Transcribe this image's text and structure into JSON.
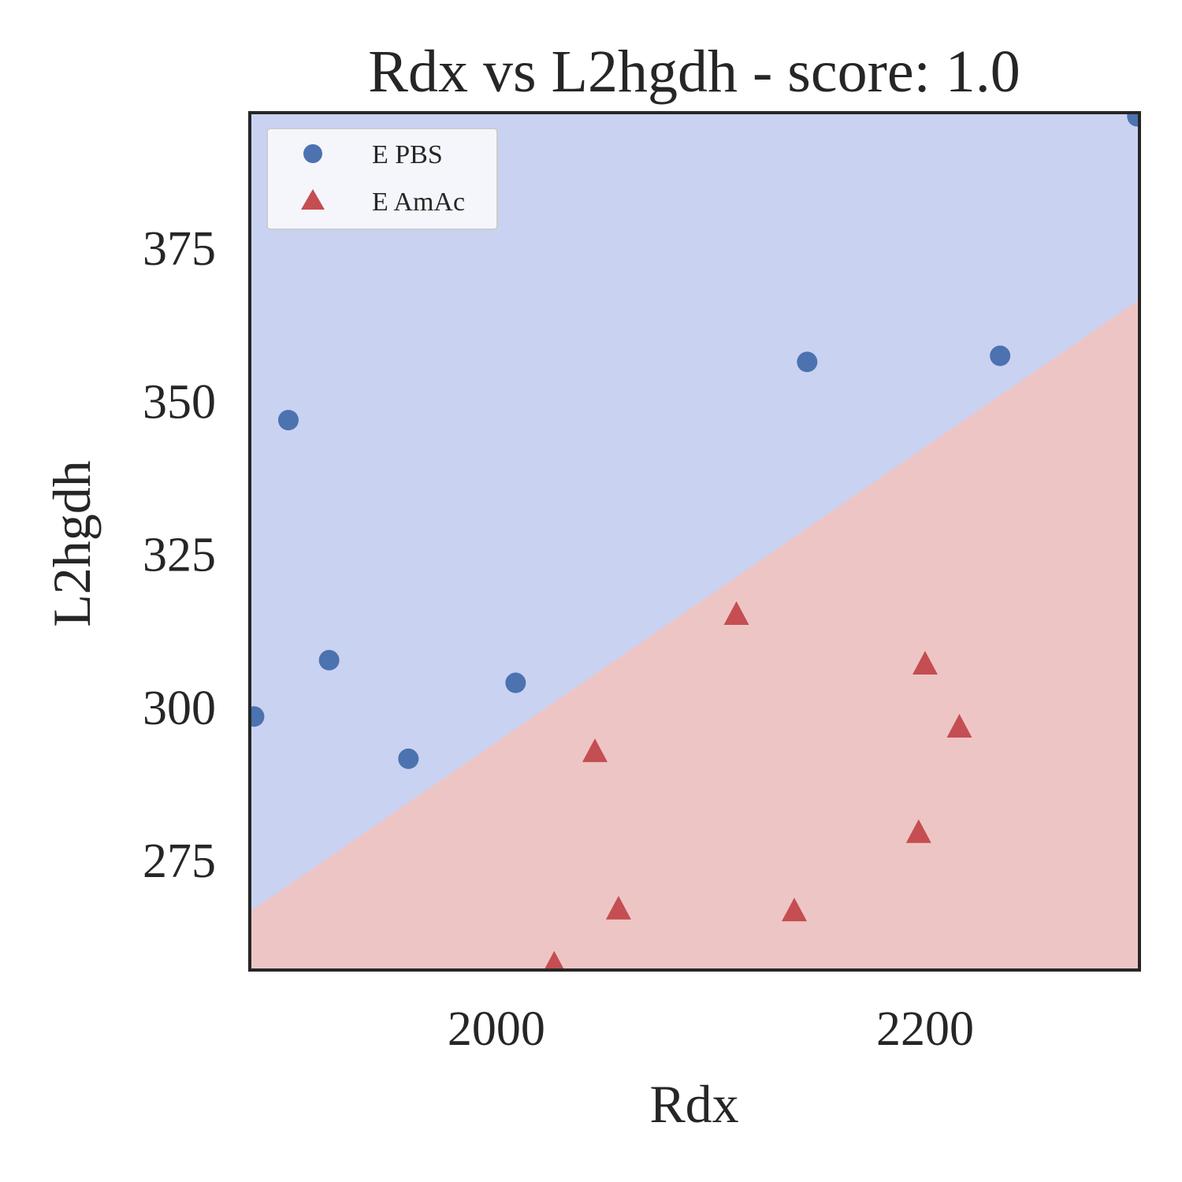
{
  "chart_data": {
    "type": "scatter",
    "title": "Rdx vs L2hgdh - score: 1.0",
    "xlabel": "Rdx",
    "ylabel": "L2hgdh",
    "xlim": [
      1885,
      2300
    ],
    "ylim": [
      257,
      397
    ],
    "x_ticks": [
      2000,
      2200
    ],
    "y_ticks": [
      275,
      300,
      325,
      350,
      375
    ],
    "grid": false,
    "legend_position": "top-left",
    "decision_boundary": {
      "points": [
        [
          1885,
          266.5
        ],
        [
          2300,
          366.5
        ]
      ],
      "above_class": "E PBS",
      "below_class": "E AmAc"
    },
    "series": [
      {
        "name": "E PBS",
        "marker": "circle",
        "color": "#4c72b0",
        "region_color": "#c9d2f1",
        "points": [
          [
            1887,
            298.4
          ],
          [
            1903,
            346.8
          ],
          [
            1922,
            307.6
          ],
          [
            1959,
            291.5
          ],
          [
            2009,
            303.9
          ],
          [
            2145,
            356.3
          ],
          [
            2235,
            357.3
          ],
          [
            2299,
            396.4
          ]
        ]
      },
      {
        "name": "E AmAc",
        "marker": "triangle",
        "color": "#c44e52",
        "region_color": "#eec5c5",
        "points": [
          [
            2027,
            257.8
          ],
          [
            2046,
            292.5
          ],
          [
            2057,
            266.8
          ],
          [
            2112,
            314.9
          ],
          [
            2139,
            266.5
          ],
          [
            2197,
            279.3
          ],
          [
            2200,
            306.8
          ],
          [
            2216,
            296.5
          ]
        ]
      }
    ]
  }
}
